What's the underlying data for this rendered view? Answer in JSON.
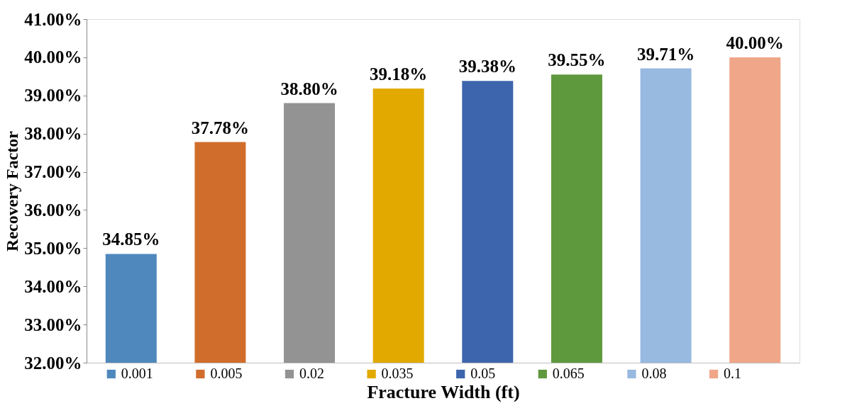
{
  "chart_data": {
    "type": "bar",
    "xlabel": "Fracture Width (ft)",
    "ylabel": "Recovery Factor",
    "categories": [
      null,
      null,
      null,
      null,
      null,
      null,
      null,
      null
    ],
    "series": [
      {
        "name": "0.001",
        "color": "#4f88bd",
        "values": [
          34.85,
          null,
          null,
          null,
          null,
          null,
          null,
          null
        ],
        "value_labels": [
          "34.85%",
          null,
          null,
          null,
          null,
          null,
          null,
          null
        ]
      },
      {
        "name": "0.005",
        "color": "#d16d2c",
        "values": [
          null,
          37.78,
          null,
          null,
          null,
          null,
          null,
          null
        ],
        "value_labels": [
          null,
          "37.78%",
          null,
          null,
          null,
          null,
          null,
          null
        ]
      },
      {
        "name": "0.02",
        "color": "#939393",
        "values": [
          null,
          null,
          38.8,
          null,
          null,
          null,
          null,
          null
        ],
        "value_labels": [
          null,
          null,
          "38.80%",
          null,
          null,
          null,
          null,
          null
        ]
      },
      {
        "name": "0.035",
        "color": "#e2a900",
        "values": [
          null,
          null,
          null,
          39.18,
          null,
          null,
          null,
          null
        ],
        "value_labels": [
          null,
          null,
          null,
          "39.18%",
          null,
          null,
          null,
          null
        ]
      },
      {
        "name": "0.05",
        "color": "#3d65ad",
        "values": [
          null,
          null,
          null,
          null,
          39.38,
          null,
          null,
          null
        ],
        "value_labels": [
          null,
          null,
          null,
          null,
          "39.38%",
          null,
          null,
          null
        ]
      },
      {
        "name": "0.065",
        "color": "#5f993e",
        "values": [
          null,
          null,
          null,
          null,
          null,
          39.55,
          null,
          null
        ],
        "value_labels": [
          null,
          null,
          null,
          null,
          null,
          "39.55%",
          null,
          null
        ]
      },
      {
        "name": "0.08",
        "color": "#98b9e0",
        "values": [
          null,
          null,
          null,
          null,
          null,
          null,
          39.71,
          null
        ],
        "value_labels": [
          null,
          null,
          null,
          null,
          null,
          null,
          "39.71%",
          null
        ]
      },
      {
        "name": "0.1",
        "color": "#f0a688",
        "values": [
          null,
          null,
          null,
          null,
          null,
          null,
          null,
          40.0
        ],
        "value_labels": [
          null,
          null,
          null,
          null,
          null,
          null,
          null,
          "40.00%"
        ]
      }
    ],
    "ylim": [
      32,
      41
    ],
    "yticks": [
      {
        "value": 32,
        "label": "32.00%"
      },
      {
        "value": 33,
        "label": "33.00%"
      },
      {
        "value": 34,
        "label": "34.00%"
      },
      {
        "value": 35,
        "label": "35.00%"
      },
      {
        "value": 36,
        "label": "36.00%"
      },
      {
        "value": 37,
        "label": "37.00%"
      },
      {
        "value": 38,
        "label": "38.00%"
      },
      {
        "value": 39,
        "label": "39.00%"
      },
      {
        "value": 40,
        "label": "40.00%"
      },
      {
        "value": 41,
        "label": "41.00%"
      }
    ],
    "grid": false,
    "legend": "bottom"
  }
}
